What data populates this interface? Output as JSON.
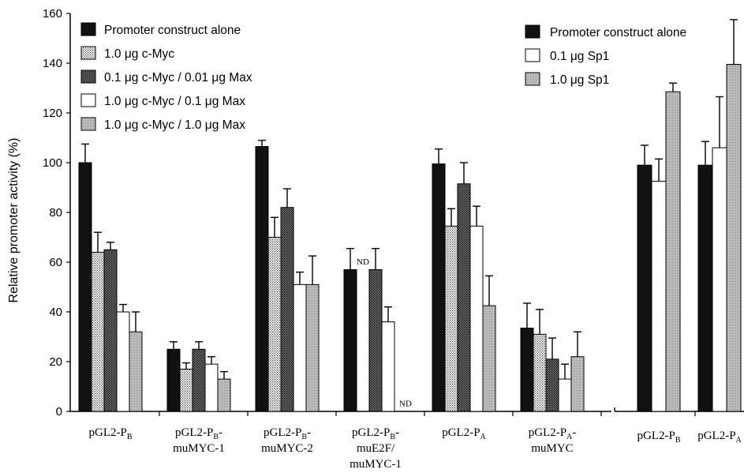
{
  "colors": {
    "black": "#111111",
    "light_dots": "#d9d9d9",
    "dark_dots": "#555555",
    "white": "#ffffff",
    "light_grey": "#bdbdbd"
  },
  "chart_data": [
    {
      "type": "bar",
      "ylabel": "Relative promoter activity (%)",
      "ylim": [
        0,
        160
      ],
      "yticks": [
        "0",
        "20",
        "40",
        "60",
        "80",
        "100",
        "120",
        "140",
        "160"
      ],
      "grid": false,
      "legend_position": "top-left",
      "categories": [
        [
          "pGL2-P",
          "B",
          ""
        ],
        [
          "pGL2-P",
          "B",
          "-",
          "muMYC-1"
        ],
        [
          "pGL2-P",
          "B",
          "-",
          "muMYC-2"
        ],
        [
          "pGL2-P",
          "B",
          "-",
          "muE2F/",
          "muMYC-1"
        ],
        [
          "pGL2-P",
          "A",
          ""
        ],
        [
          "pGL2-P",
          "A",
          "-",
          "muMYC"
        ]
      ],
      "series": [
        {
          "name": "Promoter construct alone",
          "fill": "black",
          "values": [
            100,
            25,
            106.5,
            57,
            99.5,
            33.5
          ],
          "errors": [
            7.5,
            3,
            2.5,
            8.5,
            6,
            10
          ]
        },
        {
          "name": "1.0 μg c-Myc",
          "fill": "light_dots",
          "values": [
            64,
            17,
            70,
            null,
            74.5,
            31
          ],
          "errors": [
            8,
            2.5,
            8,
            null,
            7,
            10
          ]
        },
        {
          "name": "0.1 μg c-Myc / 0.01 μg Max",
          "fill": "dark_dots",
          "values": [
            65,
            25,
            82,
            57,
            91.5,
            21
          ],
          "errors": [
            3,
            3,
            7.5,
            8.5,
            8.5,
            8.5
          ]
        },
        {
          "name": "1.0 μg c-Myc / 0.1 μg Max",
          "fill": "white",
          "values": [
            40,
            19,
            51,
            36,
            74.5,
            13
          ],
          "errors": [
            3,
            3,
            5,
            6,
            8,
            6
          ]
        },
        {
          "name": "1.0 μg c-Myc / 1.0 μg Max",
          "fill": "light_grey",
          "values": [
            32,
            13,
            51,
            null,
            42.5,
            22
          ],
          "errors": [
            8,
            3,
            11.5,
            null,
            12,
            10
          ]
        }
      ],
      "annotations": [
        {
          "text": "ND",
          "category": 3,
          "series": 1
        },
        {
          "text": "ND",
          "category": 3,
          "series": 4
        }
      ]
    },
    {
      "type": "bar",
      "ylim": [
        0,
        160
      ],
      "legend_position": "top-right",
      "categories": [
        [
          "pGL2-P",
          "B",
          ""
        ],
        [
          "pGL2-P",
          "A",
          ""
        ]
      ],
      "series": [
        {
          "name": "Promoter construct alone",
          "fill": "black",
          "values": [
            99,
            99
          ],
          "errors": [
            8,
            9.5
          ]
        },
        {
          "name": "0.1 μg Sp1",
          "fill": "white",
          "values": [
            92.5,
            106
          ],
          "errors": [
            9,
            20.5
          ]
        },
        {
          "name": "1.0 μg Sp1",
          "fill": "light_grey",
          "values": [
            128.5,
            139.5
          ],
          "errors": [
            3.5,
            18
          ]
        }
      ]
    }
  ]
}
